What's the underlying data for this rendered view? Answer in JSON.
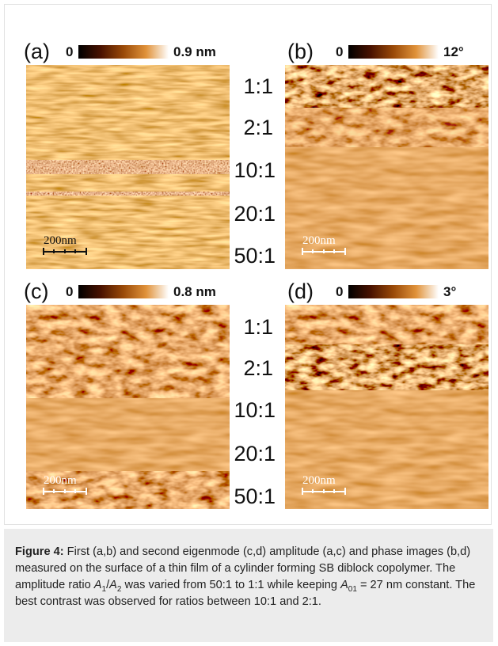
{
  "figure": {
    "rows": [
      {
        "ratios": [
          "1:1",
          "2:1",
          "10:1",
          "20:1",
          "50:1"
        ],
        "panels": [
          {
            "label": "(a)",
            "scale_min": "0",
            "scale_max": "0.9 nm",
            "scale_bar": "200nm"
          },
          {
            "label": "(b)",
            "scale_min": "0",
            "scale_max": "12°",
            "scale_bar": "200nm"
          }
        ]
      },
      {
        "ratios": [
          "1:1",
          "2:1",
          "10:1",
          "20:1",
          "50:1"
        ],
        "panels": [
          {
            "label": "(c)",
            "scale_min": "0",
            "scale_max": "0.8 nm",
            "scale_bar": "200nm"
          },
          {
            "label": "(d)",
            "scale_min": "0",
            "scale_max": "3°",
            "scale_bar": "200nm"
          }
        ]
      }
    ],
    "caption": {
      "label": "Figure 4:",
      "segments": [
        " First (a,b) and second eigenmode (c,d) amplitude (a,c) and phase images (b,d) measured on the surface of a thin film of a cylinder forming SB diblock copolymer. The amplitude ratio ",
        "A",
        "1",
        "/",
        "A",
        "2",
        " was varied from 50:1 to 1:1 while keeping ",
        "A",
        "01",
        " = 27 nm constant. The best contrast was observed for ratios between 10:1 and 2:1."
      ]
    }
  }
}
